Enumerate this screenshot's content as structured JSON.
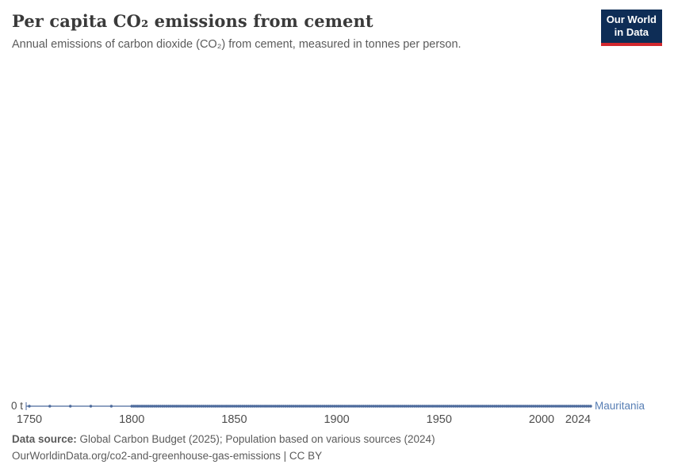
{
  "header": {
    "title": "Per capita CO₂ emissions from cement",
    "subtitle": "Annual emissions of carbon dioxide (CO₂) from cement, measured in tonnes per person.",
    "logo_line1": "Our World",
    "logo_line2": "in Data"
  },
  "chart_data": {
    "type": "line",
    "title": "Per capita CO₂ emissions from cement",
    "unit": "tonnes per person",
    "series": [
      {
        "name": "Mauritania",
        "color": "#4c6a9c",
        "x_sparse_years": [
          1750,
          1760,
          1770,
          1780,
          1790
        ],
        "x_annual_range": [
          1800,
          2024
        ],
        "value_all_points": 0
      }
    ],
    "x_ticks": [
      1750,
      1800,
      1850,
      1900,
      1950,
      2000,
      2024
    ],
    "xlim": [
      1750,
      2024
    ],
    "y_zero_tick_label": "0 t",
    "grid": false,
    "legend_position": "inline-right"
  },
  "axis": {
    "zero_label": "0 t",
    "entity_label": "Mauritania"
  },
  "footer": {
    "datasource_label": "Data source:",
    "datasource_text": " Global Carbon Budget (2025); Population based on various sources (2024)",
    "attribution": "OurWorldinData.org/co2-and-greenhouse-gas-emissions | CC BY"
  },
  "colors": {
    "line": "#4c6a9c",
    "entity_label": "#577eb4",
    "tick_text": "#4e4e4e",
    "title_text": "#3a3a3a",
    "subtitle_text": "#5b5b5b",
    "logo_bg": "#0e2d56",
    "logo_accent": "#d2282e"
  }
}
